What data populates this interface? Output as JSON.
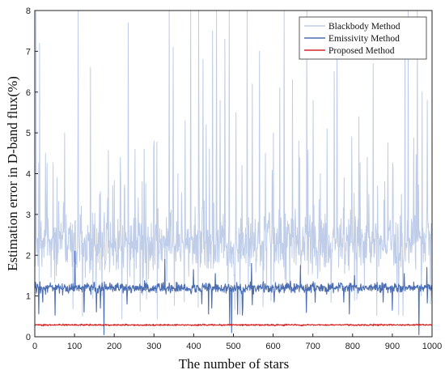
{
  "chart_data": {
    "type": "line",
    "xlabel": "The number of stars",
    "ylabel": "Estimation error in D-band flux(%)",
    "xlim": [
      0,
      1000
    ],
    "ylim": [
      0,
      8
    ],
    "x_ticks": [
      0,
      100,
      200,
      300,
      400,
      500,
      600,
      700,
      800,
      900,
      1000
    ],
    "y_ticks": [
      0,
      1,
      2,
      3,
      4,
      5,
      6,
      7,
      8
    ],
    "grid": false,
    "legend_position": "top-right",
    "series": [
      {
        "name": "Blackbody Method",
        "color": "#bfcde8",
        "n_points": 1000,
        "baseline": 2.3,
        "noise": 0.55,
        "spikes": [
          {
            "x": 3,
            "y": 8.0
          },
          {
            "x": 12,
            "y": 7.2
          },
          {
            "x": 27,
            "y": 4.5
          },
          {
            "x": 56,
            "y": 3.9
          },
          {
            "x": 75,
            "y": 5.0
          },
          {
            "x": 109,
            "y": 8.0
          },
          {
            "x": 140,
            "y": 6.6
          },
          {
            "x": 163,
            "y": 3.5
          },
          {
            "x": 215,
            "y": 4.4
          },
          {
            "x": 235,
            "y": 7.7
          },
          {
            "x": 252,
            "y": 4.6
          },
          {
            "x": 270,
            "y": 3.8
          },
          {
            "x": 300,
            "y": 4.8
          },
          {
            "x": 338,
            "y": 8.0
          },
          {
            "x": 348,
            "y": 7.1
          },
          {
            "x": 360,
            "y": 4.0
          },
          {
            "x": 378,
            "y": 5.3
          },
          {
            "x": 392,
            "y": 8.0
          },
          {
            "x": 412,
            "y": 8.0
          },
          {
            "x": 423,
            "y": 6.8
          },
          {
            "x": 431,
            "y": 5.2
          },
          {
            "x": 447,
            "y": 7.5
          },
          {
            "x": 457,
            "y": 8.0
          },
          {
            "x": 466,
            "y": 5.8
          },
          {
            "x": 478,
            "y": 7.3
          },
          {
            "x": 489,
            "y": 8.0
          },
          {
            "x": 506,
            "y": 5.5
          },
          {
            "x": 521,
            "y": 4.2
          },
          {
            "x": 534,
            "y": 8.0
          },
          {
            "x": 547,
            "y": 6.2
          },
          {
            "x": 565,
            "y": 7.0
          },
          {
            "x": 580,
            "y": 4.5
          },
          {
            "x": 600,
            "y": 5.0
          },
          {
            "x": 616,
            "y": 6.1
          },
          {
            "x": 627,
            "y": 8.0
          },
          {
            "x": 648,
            "y": 6.3
          },
          {
            "x": 664,
            "y": 4.8
          },
          {
            "x": 684,
            "y": 8.0
          },
          {
            "x": 700,
            "y": 5.8
          },
          {
            "x": 718,
            "y": 4.0
          },
          {
            "x": 735,
            "y": 5.1
          },
          {
            "x": 753,
            "y": 6.5
          },
          {
            "x": 760,
            "y": 7.8
          },
          {
            "x": 778,
            "y": 3.9
          },
          {
            "x": 797,
            "y": 4.9
          },
          {
            "x": 815,
            "y": 5.4
          },
          {
            "x": 836,
            "y": 4.4
          },
          {
            "x": 851,
            "y": 6.7
          },
          {
            "x": 862,
            "y": 3.7
          },
          {
            "x": 880,
            "y": 3.8
          },
          {
            "x": 901,
            "y": 4.1
          },
          {
            "x": 931,
            "y": 7.5
          },
          {
            "x": 939,
            "y": 8.0
          },
          {
            "x": 962,
            "y": 8.0
          },
          {
            "x": 974,
            "y": 6.0
          },
          {
            "x": 987,
            "y": 5.8
          }
        ]
      },
      {
        "name": "Emissivity Method",
        "color": "#4b6eb3",
        "n_points": 1000,
        "baseline": 1.2,
        "noise": 0.09,
        "spikes": [
          {
            "x": 20,
            "y": 0.85
          },
          {
            "x": 101,
            "y": 2.1
          },
          {
            "x": 165,
            "y": 0.7
          },
          {
            "x": 174,
            "y": 0.05
          },
          {
            "x": 232,
            "y": 0.8
          },
          {
            "x": 327,
            "y": 1.9
          },
          {
            "x": 399,
            "y": 1.65
          },
          {
            "x": 445,
            "y": 0.7
          },
          {
            "x": 454,
            "y": 1.55
          },
          {
            "x": 490,
            "y": 0.3
          },
          {
            "x": 495,
            "y": 0.1
          },
          {
            "x": 545,
            "y": 1.8
          },
          {
            "x": 602,
            "y": 0.85
          },
          {
            "x": 668,
            "y": 1.75
          },
          {
            "x": 777,
            "y": 0.85
          },
          {
            "x": 804,
            "y": 1.5
          },
          {
            "x": 876,
            "y": 0.85
          },
          {
            "x": 899,
            "y": 0.65
          },
          {
            "x": 929,
            "y": 1.55
          },
          {
            "x": 966,
            "y": 0.05
          },
          {
            "x": 986,
            "y": 1.7
          }
        ]
      },
      {
        "name": "Proposed Method",
        "color": "#d62728",
        "n_points": 1000,
        "baseline": 0.29,
        "noise": 0.013,
        "spikes": []
      }
    ]
  }
}
